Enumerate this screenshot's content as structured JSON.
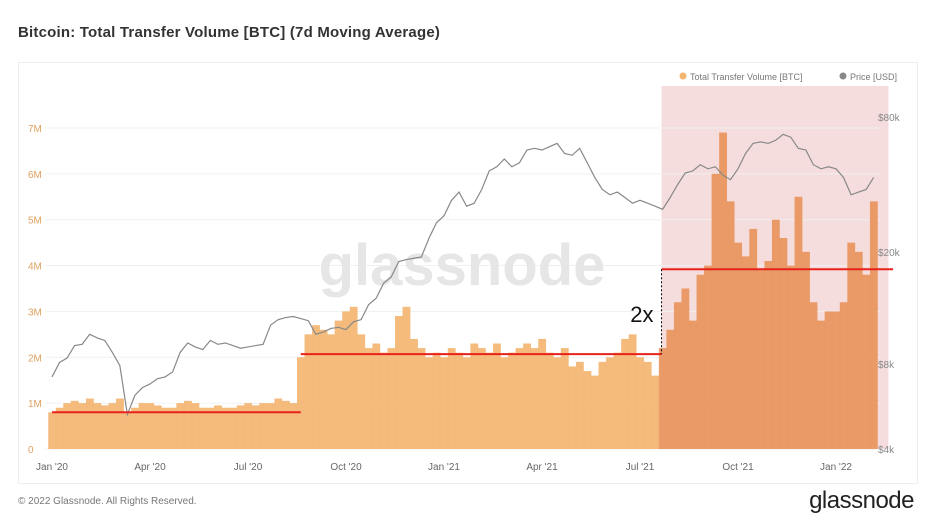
{
  "title": "Bitcoin: Total Transfer Volume [BTC] (7d Moving Average)",
  "footer": "© 2022 Glassnode. All Rights Reserved.",
  "logo": "glassnode",
  "watermark": "glassnode",
  "colors": {
    "volume": "#f3b46e",
    "volume_highlight": "#e8925a",
    "price": "#888888",
    "level": "#e8221b",
    "shade": "#f4d4d4"
  },
  "chart_data": {
    "type": "bar",
    "title": "Bitcoin: Total Transfer Volume [BTC] (7d Moving Average)",
    "x_start": "2020-01-01",
    "x_step_days": 7,
    "legend": [
      {
        "label": "Total Transfer Volume [BTC]",
        "color": "#f3b46e"
      },
      {
        "label": "Price [USD]",
        "color": "#888888"
      }
    ],
    "legend_position": "top-right",
    "x_ticks": [
      "Jan '20",
      "Apr '20",
      "Jul '20",
      "Oct '20",
      "Jan '21",
      "Apr '21",
      "Jul '21",
      "Oct '21",
      "Jan '22"
    ],
    "y_left": {
      "label": "Total Transfer Volume [BTC]",
      "ticks": [
        "0",
        "1M",
        "2M",
        "3M",
        "4M",
        "5M",
        "6M",
        "7M"
      ],
      "ylim": [
        0,
        7000000
      ]
    },
    "y_right": {
      "label": "Price [USD]",
      "scale": "log",
      "ticks": [
        "$4k",
        "$8k",
        "$20k",
        "$80k"
      ]
    },
    "series": [
      {
        "name": "Total Transfer Volume [BTC]",
        "unit": "M BTC",
        "values": [
          0.8,
          0.9,
          1.0,
          1.05,
          1.0,
          1.1,
          1.0,
          0.95,
          1.0,
          1.1,
          0.8,
          0.9,
          1.0,
          1.0,
          0.95,
          0.9,
          0.9,
          1.0,
          1.05,
          1.0,
          0.9,
          0.9,
          0.95,
          0.9,
          0.9,
          0.95,
          1.0,
          0.95,
          1.0,
          1.0,
          1.1,
          1.05,
          1.0,
          2.0,
          2.5,
          2.7,
          2.6,
          2.5,
          2.8,
          3.0,
          3.1,
          2.5,
          2.2,
          2.3,
          2.1,
          2.2,
          2.9,
          3.1,
          2.4,
          2.2,
          2.0,
          2.1,
          2.0,
          2.2,
          2.1,
          2.0,
          2.3,
          2.2,
          2.1,
          2.3,
          2.0,
          2.1,
          2.2,
          2.3,
          2.2,
          2.4,
          2.1,
          2.0,
          2.2,
          1.8,
          1.9,
          1.7,
          1.6,
          1.9,
          2.0,
          2.1,
          2.4,
          2.5,
          2.0,
          1.9,
          1.6,
          2.2,
          2.6,
          3.2,
          3.5,
          2.8,
          3.8,
          4.0,
          6.0,
          6.9,
          5.4,
          4.5,
          4.2,
          4.8,
          3.9,
          4.1,
          5.0,
          4.6,
          4.0,
          5.5,
          4.3,
          3.2,
          2.8,
          3.0,
          3.0,
          3.2,
          4.5,
          4.3,
          3.8,
          5.4
        ]
      },
      {
        "name": "Price [USD]",
        "type": "line",
        "values": [
          7200,
          8100,
          8400,
          9300,
          9400,
          10200,
          9900,
          9700,
          8800,
          7900,
          5300,
          6200,
          6600,
          6800,
          7100,
          7200,
          7500,
          8800,
          9500,
          9200,
          9000,
          9700,
          9400,
          9500,
          9300,
          9100,
          9200,
          9300,
          9400,
          11000,
          11500,
          11700,
          11800,
          11600,
          11400,
          10200,
          10400,
          10700,
          10800,
          10600,
          11300,
          11500,
          13000,
          13700,
          15500,
          16300,
          18500,
          18800,
          19000,
          19200,
          23000,
          27000,
          29000,
          34000,
          37000,
          32000,
          33000,
          38000,
          46000,
          48000,
          52000,
          48000,
          50000,
          57000,
          58000,
          57000,
          59000,
          61000,
          55000,
          54000,
          58000,
          50000,
          43000,
          38000,
          36000,
          37000,
          35000,
          33000,
          34000,
          33000,
          32000,
          31000,
          35000,
          40000,
          45000,
          46000,
          49000,
          47000,
          48000,
          44000,
          42000,
          47000,
          55000,
          61000,
          62000,
          61000,
          63000,
          67000,
          65000,
          58000,
          57000,
          49000,
          47000,
          48000,
          47000,
          43000,
          36000,
          37000,
          38000,
          43000
        ]
      }
    ],
    "annotations": {
      "levels": [
        {
          "from": "2020-01-01",
          "to": "2020-08-19",
          "value": 0.8
        },
        {
          "from": "2020-08-19",
          "to": "2021-07-20",
          "value": 2.07
        },
        {
          "from": "2021-07-20",
          "to": "2022-02-20",
          "value": 3.92
        }
      ],
      "highlight": {
        "from": "2021-07-20",
        "to": "2022-02-12"
      },
      "multiplier_label": "2x"
    }
  }
}
